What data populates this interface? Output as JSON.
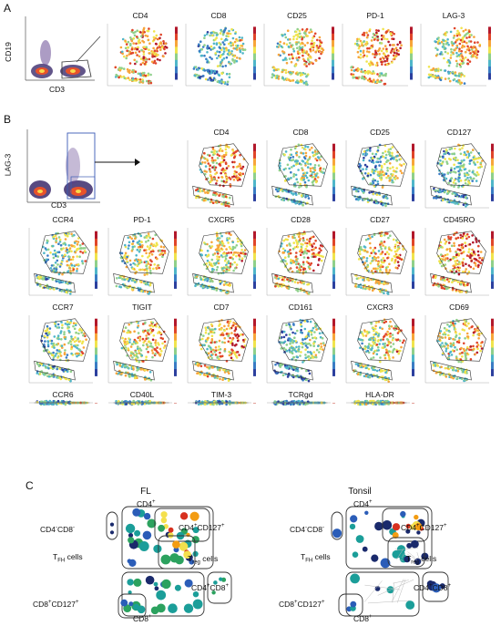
{
  "panels": {
    "a": {
      "letter": "A",
      "flow": {
        "ylabel": "CD19",
        "xlabel": "CD3"
      },
      "maps": [
        "CD4",
        "CD8",
        "CD25",
        "PD-1",
        "LAG-3"
      ]
    },
    "b": {
      "letter": "B",
      "flow": {
        "ylabel": "LAG-3",
        "xlabel": "CD3"
      },
      "row1": [
        "CD4",
        "CD8",
        "CD25",
        "CD127"
      ],
      "row2": [
        "CCR4",
        "PD-1",
        "CXCR5",
        "CD28",
        "CD27",
        "CD45RO"
      ],
      "row3": [
        "CCR7",
        "TIGIT",
        "CD7",
        "CD161",
        "CXCR3",
        "CD69"
      ],
      "row4": [
        "CCR6",
        "CD40L",
        "TIM-3",
        "TCRgd",
        "HLA-DR"
      ]
    },
    "c": {
      "letter": "C",
      "fl_title": "FL",
      "tonsil_title": "Tonsil"
    }
  },
  "colors": {
    "red": "#d7301f",
    "orange": "#f39c12",
    "yellow": "#f4e04d",
    "green": "#2ca25f",
    "teal": "#1b9e99",
    "blue": "#2b5db8",
    "navy": "#1a2a6c"
  }
}
